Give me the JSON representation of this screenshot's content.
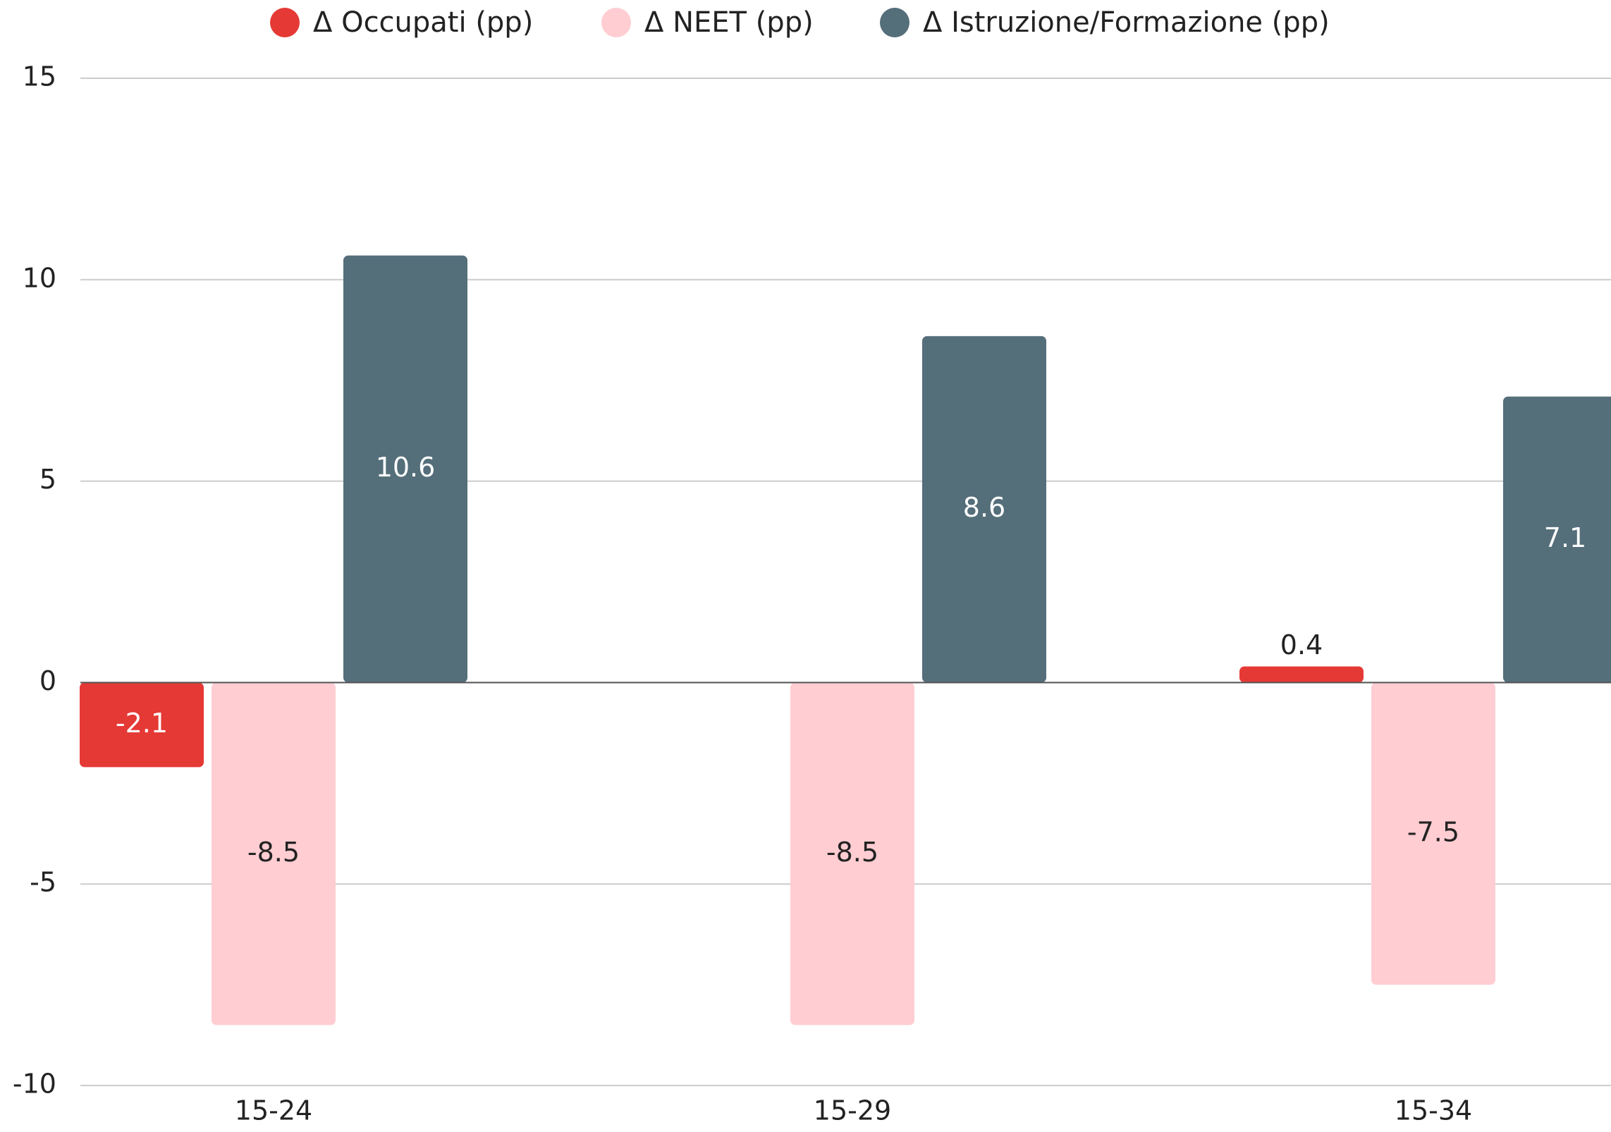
{
  "chart_data": {
    "type": "bar",
    "categories": [
      "15-24",
      "15-29",
      "15-34"
    ],
    "series": [
      {
        "name": "Δ Occupati (pp)",
        "color": "#e53935",
        "values": [
          -2.1,
          null,
          0.4
        ]
      },
      {
        "name": "Δ NEET (pp)",
        "color": "#ffcdd2",
        "values": [
          -8.5,
          -8.5,
          -7.5
        ]
      },
      {
        "name": "Δ Istruzione/Formazione (pp)",
        "color": "#546e7a",
        "values": [
          10.6,
          8.6,
          7.1
        ]
      }
    ],
    "ylim": [
      -10,
      15
    ],
    "yticks": [
      -10,
      -5,
      0,
      5,
      10,
      15
    ],
    "grid": true,
    "legend": "top"
  }
}
